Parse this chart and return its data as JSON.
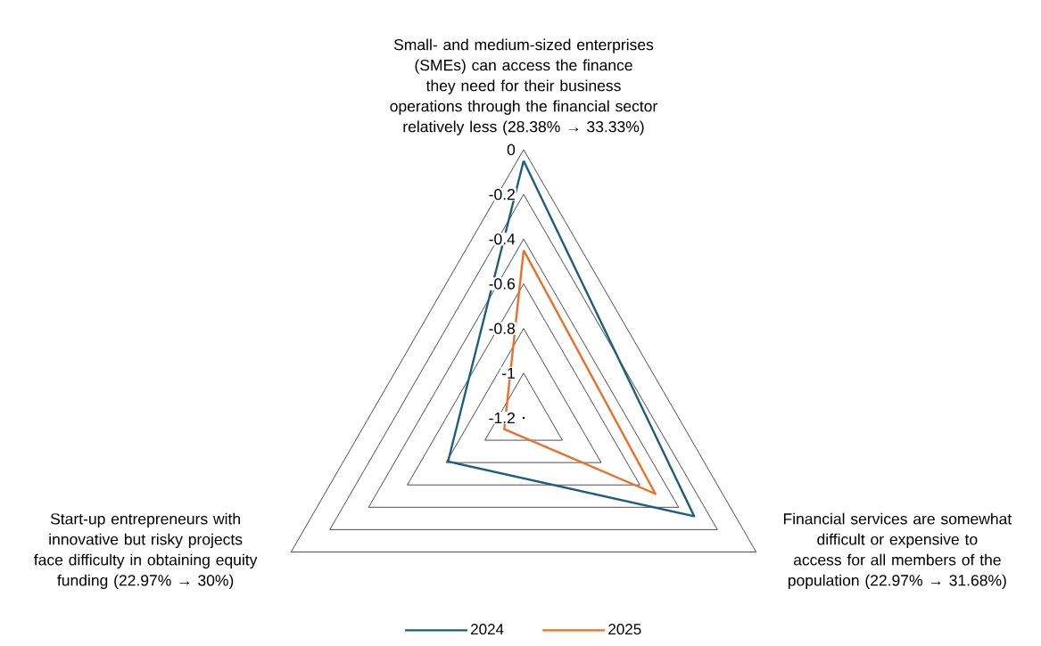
{
  "chart_data": {
    "type": "radar",
    "categories": [
      "Small- and medium-sized enterprises (SMEs) can access the finance they need for their business operations through the financial sector relatively less (28.38% → 33.33%)",
      "Financial services are somewhat difficult or expensive to access for all members of the population (22.97% → 31.68%)",
      "Start-up entrepreneurs with innovative but risky projects face difficulty in obtaining equity funding (22.97% → 30%)"
    ],
    "series": [
      {
        "name": "2024",
        "color": "#1d5e7e",
        "values": [
          -0.05,
          -0.32,
          -0.81
        ]
      },
      {
        "name": "2025",
        "color": "#e8702a",
        "values": [
          -0.45,
          -0.52,
          -1.1
        ]
      }
    ],
    "ylim": [
      -1.2,
      0
    ],
    "yticks": [
      0,
      -0.2,
      -0.4,
      -0.6,
      -0.8,
      -1,
      -1.2
    ],
    "grid": true,
    "legend": "bottom"
  }
}
